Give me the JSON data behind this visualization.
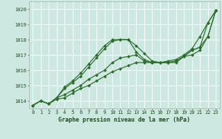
{
  "bg_color": "#cce8e0",
  "grid_color": "#ffffff",
  "line_color": "#2d6e2d",
  "marker": "D",
  "markersize": 2.0,
  "linewidth": 0.9,
  "xlabel": "Graphe pression niveau de la mer (hPa)",
  "xlabel_fontsize": 6.0,
  "tick_fontsize": 5.0,
  "ylim": [
    1013.5,
    1020.5
  ],
  "xlim": [
    -0.5,
    23.5
  ],
  "yticks": [
    1014,
    1015,
    1016,
    1017,
    1018,
    1019,
    1020
  ],
  "xticks": [
    0,
    1,
    2,
    3,
    4,
    5,
    6,
    7,
    8,
    9,
    10,
    11,
    12,
    13,
    14,
    15,
    16,
    17,
    18,
    19,
    20,
    21,
    22,
    23
  ],
  "series": [
    [
      1013.7,
      1014.0,
      1013.8,
      1014.1,
      1014.2,
      1014.5,
      1014.8,
      1015.0,
      1015.3,
      1015.6,
      1015.9,
      1016.1,
      1016.3,
      1016.5,
      1016.5,
      1016.5,
      1016.5,
      1016.5,
      1016.6,
      1016.9,
      1017.3,
      1017.5,
      1019.1,
      1019.9
    ],
    [
      1013.7,
      1014.0,
      1013.8,
      1014.2,
      1014.8,
      1015.2,
      1015.6,
      1016.2,
      1016.8,
      1017.4,
      1017.9,
      1018.0,
      1018.0,
      1017.6,
      1017.1,
      1016.6,
      1016.5,
      1016.5,
      1016.6,
      1016.9,
      1017.0,
      1017.3,
      1018.2,
      1019.9
    ],
    [
      1013.7,
      1014.0,
      1013.8,
      1014.2,
      1014.9,
      1015.3,
      1015.8,
      1016.4,
      1017.0,
      1017.6,
      1018.0,
      1018.0,
      1018.0,
      1017.2,
      1016.7,
      1016.5,
      1016.5,
      1016.6,
      1016.7,
      1017.0,
      1017.4,
      1018.2,
      1019.1,
      1019.9
    ],
    [
      1013.7,
      1014.0,
      1013.8,
      1014.2,
      1014.4,
      1014.7,
      1015.0,
      1015.4,
      1015.7,
      1016.0,
      1016.5,
      1016.8,
      1016.9,
      1017.0,
      1016.6,
      1016.5,
      1016.5,
      1016.5,
      1016.5,
      1016.9,
      1017.3,
      1017.5,
      1018.2,
      1019.9
    ]
  ]
}
